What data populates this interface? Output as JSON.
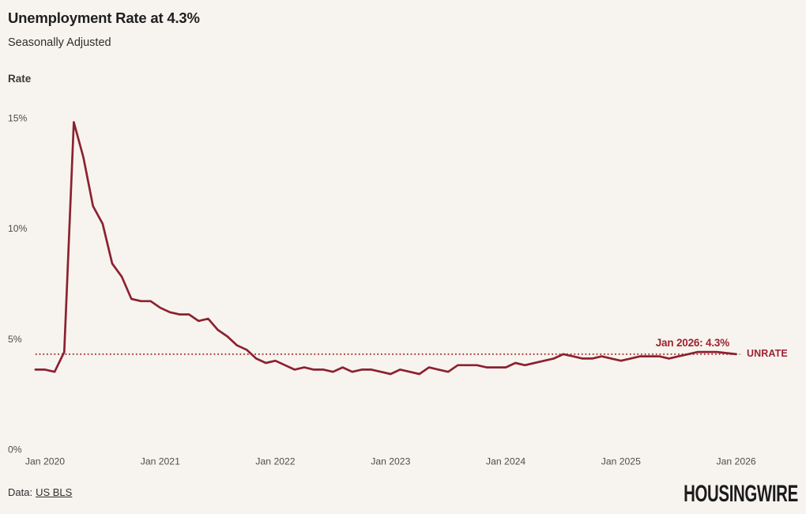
{
  "header": {
    "title": "Unemployment Rate at 4.3%",
    "subtitle": "Seasonally Adjusted"
  },
  "chart_data": {
    "type": "line",
    "title": "Unemployment Rate at 4.3%",
    "subtitle": "Seasonally Adjusted",
    "xlabel": "",
    "ylabel": "Rate",
    "ylim": [
      0,
      16
    ],
    "grid": false,
    "legend": "end-of-line-label",
    "x": [
      "Dec 2019",
      "Jan 2020",
      "Feb 2020",
      "Mar 2020",
      "Apr 2020",
      "May 2020",
      "Jun 2020",
      "Jul 2020",
      "Aug 2020",
      "Sep 2020",
      "Oct 2020",
      "Nov 2020",
      "Dec 2020",
      "Jan 2021",
      "Feb 2021",
      "Mar 2021",
      "Apr 2021",
      "May 2021",
      "Jun 2021",
      "Jul 2021",
      "Aug 2021",
      "Sep 2021",
      "Oct 2021",
      "Nov 2021",
      "Dec 2021",
      "Jan 2022",
      "Feb 2022",
      "Mar 2022",
      "Apr 2022",
      "May 2022",
      "Jun 2022",
      "Jul 2022",
      "Aug 2022",
      "Sep 2022",
      "Oct 2022",
      "Nov 2022",
      "Dec 2022",
      "Jan 2023",
      "Feb 2023",
      "Mar 2023",
      "Apr 2023",
      "May 2023",
      "Jun 2023",
      "Jul 2023",
      "Aug 2023",
      "Sep 2023",
      "Oct 2023",
      "Nov 2023",
      "Dec 2023",
      "Jan 2024",
      "Feb 2024",
      "Mar 2024",
      "Apr 2024",
      "May 2024",
      "Jun 2024",
      "Jul 2024",
      "Aug 2024",
      "Sep 2024",
      "Oct 2024",
      "Nov 2024",
      "Dec 2024",
      "Jan 2025",
      "Feb 2025",
      "Mar 2025",
      "Apr 2025",
      "May 2025",
      "Jun 2025",
      "Jul 2025",
      "Aug 2025",
      "Sep 2025",
      "Oct 2025",
      "Nov 2025",
      "Dec 2025",
      "Jan 2026"
    ],
    "series": [
      {
        "name": "UNRATE",
        "values": [
          3.6,
          3.6,
          3.5,
          4.4,
          14.8,
          13.2,
          11.0,
          10.2,
          8.4,
          7.8,
          6.8,
          6.7,
          6.7,
          6.4,
          6.2,
          6.1,
          6.1,
          5.8,
          5.9,
          5.4,
          5.1,
          4.7,
          4.5,
          4.1,
          3.9,
          4.0,
          3.8,
          3.6,
          3.7,
          3.6,
          3.6,
          3.5,
          3.7,
          3.5,
          3.6,
          3.6,
          3.5,
          3.4,
          3.6,
          3.5,
          3.4,
          3.7,
          3.6,
          3.5,
          3.8,
          3.8,
          3.8,
          3.7,
          3.7,
          3.7,
          3.9,
          3.8,
          3.9,
          4.0,
          4.1,
          4.3,
          4.2,
          4.1,
          4.1,
          4.2,
          4.1,
          4.0,
          4.1,
          4.2,
          4.2,
          4.2,
          4.1,
          4.2,
          4.3,
          4.4,
          4.4,
          4.4,
          4.35,
          4.3
        ]
      }
    ],
    "yticks": [
      {
        "value": 0,
        "label": "0%"
      },
      {
        "value": 5,
        "label": "5%"
      },
      {
        "value": 10,
        "label": "10%"
      },
      {
        "value": 15,
        "label": "15%"
      }
    ],
    "xticks": [
      {
        "month_index": 1,
        "label": "Jan 2020"
      },
      {
        "month_index": 13,
        "label": "Jan 2021"
      },
      {
        "month_index": 25,
        "label": "Jan 2022"
      },
      {
        "month_index": 37,
        "label": "Jan 2023"
      },
      {
        "month_index": 49,
        "label": "Jan 2024"
      },
      {
        "month_index": 61,
        "label": "Jan 2025"
      },
      {
        "month_index": 73,
        "label": "Jan 2026"
      }
    ],
    "reference_line": {
      "value": 4.3,
      "style": "dotted"
    },
    "annotation": {
      "text": "Jan 2026: 4.3%"
    },
    "end_label": {
      "dash": "-",
      "text": "UNRATE"
    }
  },
  "footer": {
    "source_prefix": "Data:",
    "source_link": "US BLS",
    "brand": "HOUSINGWIRE"
  },
  "colors": {
    "background": "#f7f4ef",
    "line": "#8c2130",
    "reference_dotted": "#aa3b38",
    "annotation": "#9e2230",
    "title_text": "#1f1f1f",
    "tick_text": "#4d4d4d",
    "brand_text": "#1c1c1c"
  }
}
